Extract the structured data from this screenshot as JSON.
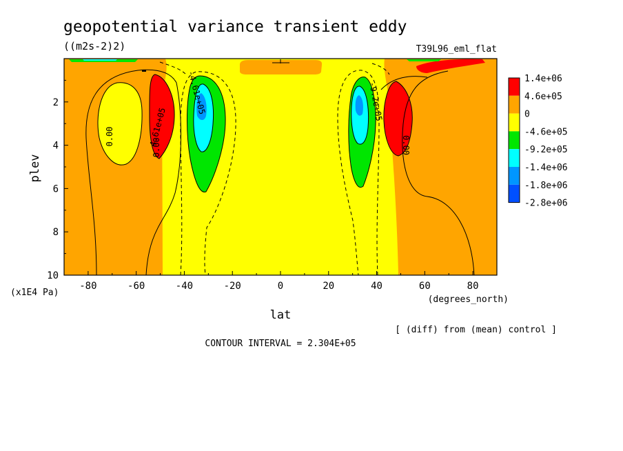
{
  "chart_data": {
    "type": "heatmap",
    "title": "geopotential variance transient eddy",
    "units": "((m2s-2)2)",
    "run_label": "T39L96_eml_flat",
    "xlabel": "lat",
    "xunits": "(degrees_north)",
    "ylabel": "plev",
    "yunits": "(x1E4 Pa)",
    "xlim": [
      -90,
      90
    ],
    "ylim": [
      10,
      0
    ],
    "xticks": [
      -80,
      -60,
      -40,
      -20,
      0,
      20,
      40,
      60,
      80
    ],
    "yticks": [
      2,
      4,
      6,
      8,
      10
    ],
    "xtick_labels": [
      "-80",
      "-60",
      "-40",
      "-20",
      "0",
      "20",
      "40",
      "60",
      "80"
    ],
    "ytick_labels": [
      "2",
      "4",
      "6",
      "8",
      "10"
    ],
    "diff_note": "[ (diff) from (mean) control ]",
    "contour_interval_text": "CONTOUR INTERVAL = 2.304E+05",
    "colorbar": {
      "labels": [
        "1.4e+06",
        "4.6e+05",
        "0",
        "-4.6e+05",
        "-9.2e+05",
        "-1.4e+06",
        "-1.8e+06",
        "-2.8e+06"
      ],
      "colors": [
        "#ff0000",
        "#ffa500",
        "#ffff00",
        "#00e600",
        "#00ffff",
        "#0096ff",
        "#0050ff"
      ]
    },
    "contour_labels": [
      {
        "text": "0.00",
        "lat": -70,
        "plev": 3.6,
        "angle": -90
      },
      {
        "text": "4.61e+05",
        "lat": -50,
        "plev": 3.2,
        "angle": -75
      },
      {
        "text": "0.00",
        "lat": -50.5,
        "plev": 4.1,
        "angle": -90
      },
      {
        "text": "-4.61e+05",
        "lat": -36,
        "plev": 1.6,
        "angle": 75
      },
      {
        "text": "0.00",
        "lat": 51,
        "plev": 4.0,
        "angle": 90
      },
      {
        "text": "-9.2e+05",
        "lat": 38.5,
        "plev": 2.0,
        "angle": 80
      }
    ]
  }
}
